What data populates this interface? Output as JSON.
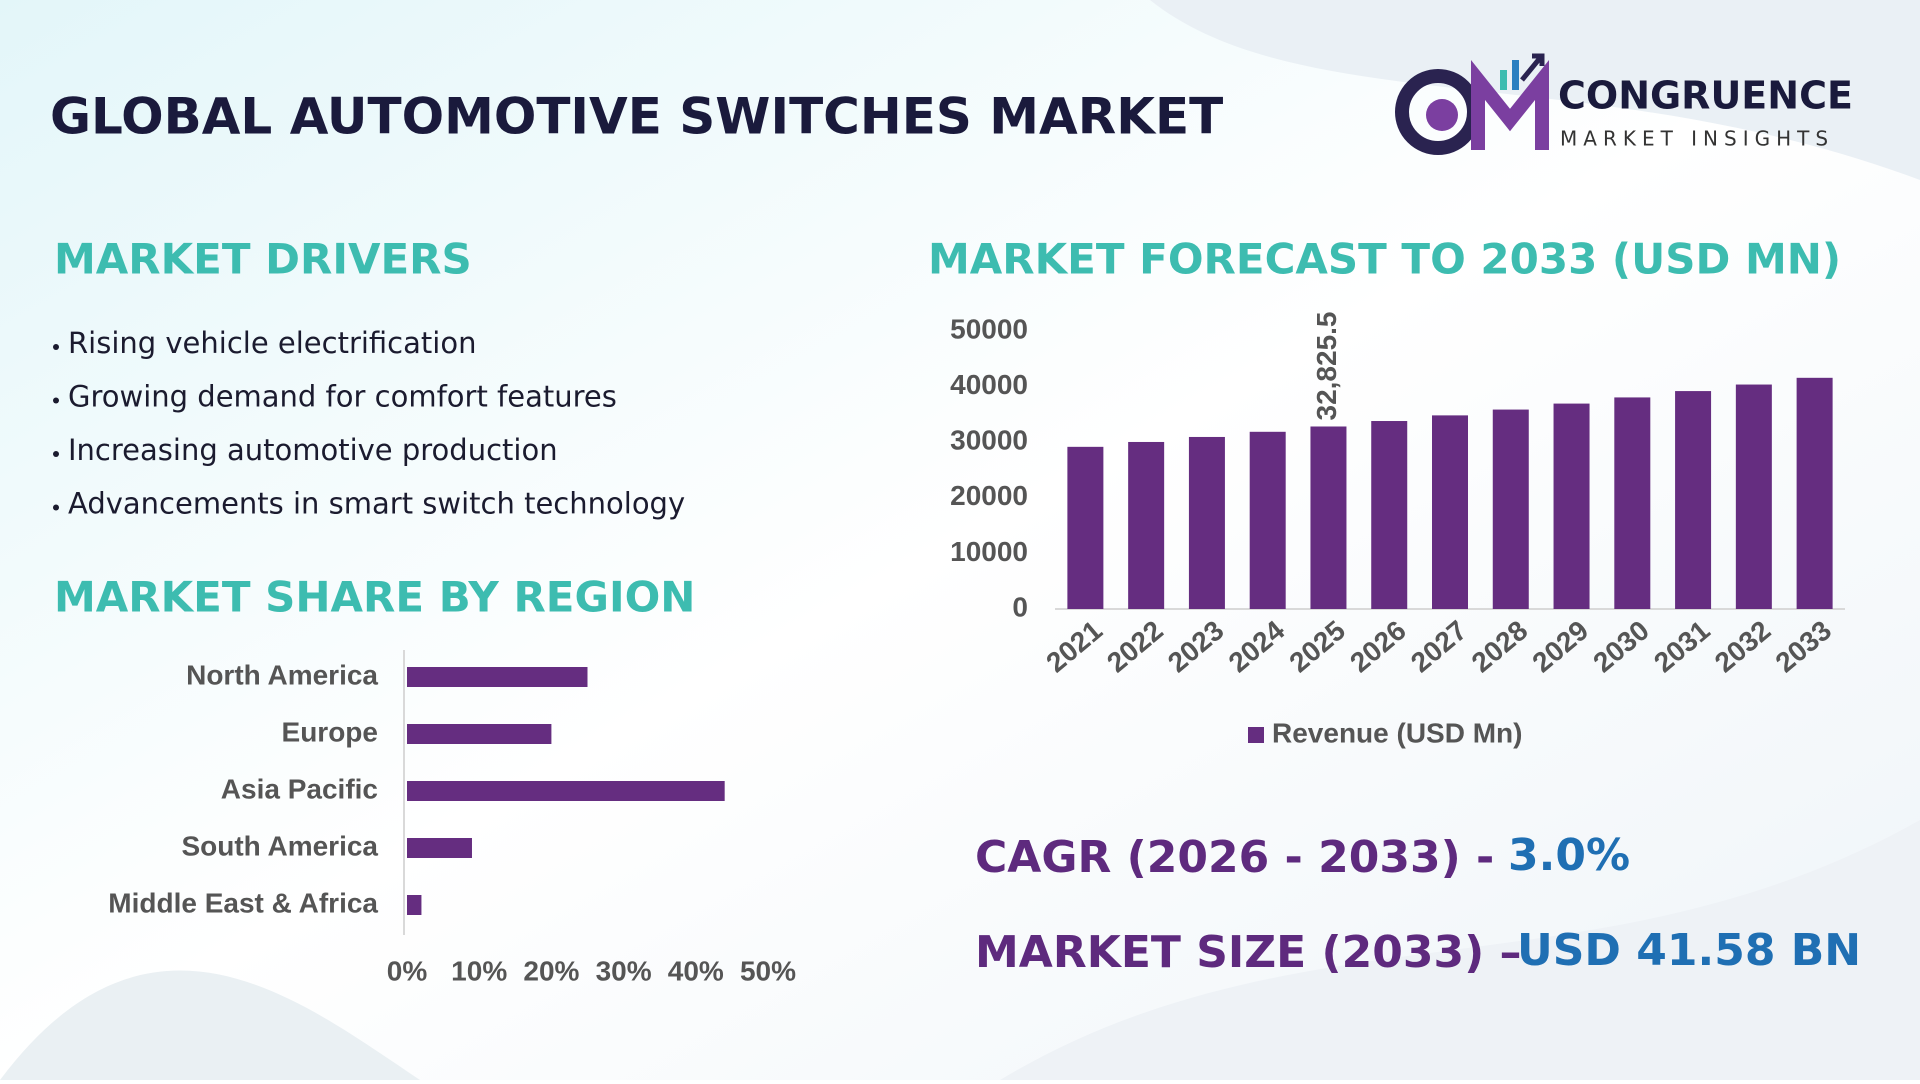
{
  "header": {
    "title": "GLOBAL AUTOMOTIVE SWITCHES MARKET",
    "brand": "CONGRUENCE",
    "brand_sub": "MARKET INSIGHTS"
  },
  "drivers": {
    "title": "MARKET DRIVERS",
    "items": [
      "Rising vehicle electrification",
      "Growing demand for comfort features",
      "Increasing automotive production",
      "Advancements in smart switch technology"
    ]
  },
  "chart_data": [
    {
      "type": "bar",
      "orientation": "horizontal",
      "title": "MARKET SHARE BY REGION",
      "categories": [
        "North America",
        "Europe",
        "Asia Pacific",
        "South America",
        "Middle East & Africa"
      ],
      "values": [
        25,
        20,
        44,
        9,
        2
      ],
      "color": "#652d80",
      "xlim": [
        0,
        50
      ],
      "xticks": [
        {
          "value": 0,
          "label": "0%"
        },
        {
          "value": 10,
          "label": "10%"
        },
        {
          "value": 20,
          "label": "20%"
        },
        {
          "value": 30,
          "label": "30%"
        },
        {
          "value": 40,
          "label": "40%"
        },
        {
          "value": 50,
          "label": "50%"
        }
      ]
    },
    {
      "type": "bar",
      "orientation": "vertical",
      "title": "MARKET FORECAST TO 2033 (USD MN)",
      "categories": [
        "2021",
        "2022",
        "2023",
        "2024",
        "2025",
        "2026",
        "2027",
        "2028",
        "2029",
        "2030",
        "2031",
        "2032",
        "2033"
      ],
      "series": [
        {
          "name": "Revenue (USD Mn)",
          "color": "#652d80",
          "values": [
            29166,
            30041,
            30942,
            31870,
            32825.5,
            33810,
            34824,
            35869,
            36945,
            38053,
            39195,
            40371,
            41580
          ],
          "value_labels": [
            null,
            null,
            null,
            null,
            "32,825.5",
            null,
            null,
            null,
            null,
            null,
            null,
            null,
            null
          ]
        }
      ],
      "ylim": [
        0,
        50000
      ],
      "yticks": [
        0,
        10000,
        20000,
        30000,
        40000,
        50000
      ],
      "legend": "bottom"
    }
  ],
  "stats": {
    "cagr_label": "CAGR (2026 - 2033) -",
    "cagr_value": "3.0%",
    "size_label": "MARKET SIZE (2033) –",
    "size_value": "USD 41.58 BN"
  }
}
